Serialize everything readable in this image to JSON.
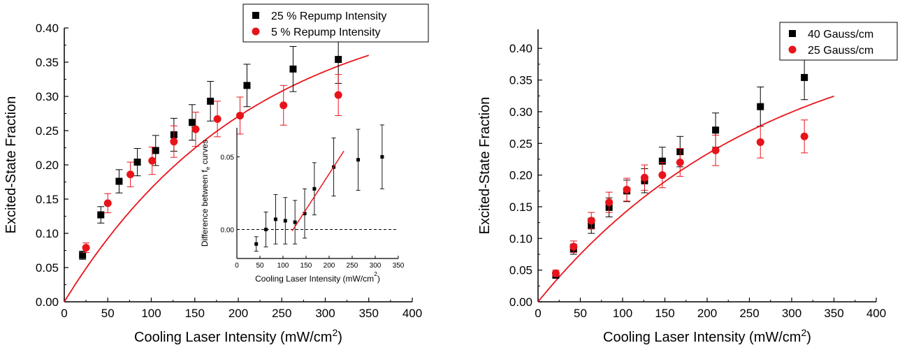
{
  "chart_data": [
    {
      "type": "scatter",
      "xlabel": "Cooling Laser Intensity (mW/cm²)",
      "ylabel": "Excited-State Fraction",
      "xlim": [
        0,
        400
      ],
      "ylim": [
        0,
        0.4
      ],
      "xticks": [
        "0",
        "50",
        "100",
        "150",
        "200",
        "250",
        "300",
        "350",
        "400"
      ],
      "yticks": [
        "0.00",
        "0.05",
        "0.10",
        "0.15",
        "0.20",
        "0.25",
        "0.30",
        "0.35",
        "0.40"
      ],
      "legend_position": "top-right",
      "series": [
        {
          "name": "25 % Repump Intensity",
          "marker": "square",
          "color": "#000000",
          "x": [
            21,
            42,
            63,
            84,
            105,
            126,
            147,
            168,
            210,
            263,
            315
          ],
          "y": [
            0.068,
            0.127,
            0.176,
            0.204,
            0.221,
            0.244,
            0.262,
            0.293,
            0.316,
            0.34,
            0.354
          ],
          "err": [
            0.006,
            0.012,
            0.017,
            0.02,
            0.022,
            0.024,
            0.026,
            0.029,
            0.031,
            0.033,
            0.035
          ]
        },
        {
          "name": "5 % Repump Intensity",
          "marker": "circle",
          "color": "#e8141a",
          "x": [
            25,
            50,
            76,
            101,
            126,
            151,
            176,
            202,
            252,
            315
          ],
          "y": [
            0.079,
            0.144,
            0.186,
            0.206,
            0.234,
            0.252,
            0.267,
            0.272,
            0.287,
            0.302
          ],
          "err": [
            0.007,
            0.014,
            0.018,
            0.02,
            0.023,
            0.025,
            0.026,
            0.027,
            0.029,
            0.03
          ]
        },
        {
          "name": "",
          "type": "line",
          "color": "#e8141a",
          "model": {
            "A": 0.45,
            "k": 0.0046
          },
          "x_range": [
            0,
            350
          ]
        }
      ],
      "inset": {
        "type": "scatter",
        "xlabel": "Cooling Laser Intensity (mW/cm²)",
        "ylabel_prefix": "Difference between f",
        "ylabel_sub": "e",
        "ylabel_suffix": " curves",
        "xlim": [
          0,
          350
        ],
        "ylim": [
          -0.02,
          0.07
        ],
        "xticks": [
          "0",
          "50",
          "100",
          "150",
          "200",
          "250",
          "300",
          "350"
        ],
        "yticks": [
          "0.00",
          "0.05"
        ],
        "dashed_zero_line": true,
        "series": [
          {
            "name": "",
            "marker": "square",
            "color": "#000000",
            "x": [
              42,
              63,
              84,
              105,
              126,
              147,
              168,
              210,
              263,
              315
            ],
            "y": [
              -0.01,
              0.0,
              0.007,
              0.006,
              0.005,
              0.011,
              0.028,
              0.043,
              0.048,
              0.05
            ],
            "err": [
              0.005,
              0.012,
              0.017,
              0.016,
              0.015,
              0.017,
              0.018,
              0.02,
              0.021,
              0.022
            ]
          },
          {
            "name": "",
            "type": "line",
            "color": "#e8141a",
            "x": [
              120,
              232
            ],
            "y": [
              -0.001,
              0.054
            ]
          }
        ]
      }
    },
    {
      "type": "scatter",
      "xlabel": "Cooling Laser Intensity (mW/cm²)",
      "ylabel": "Excited-State Fraction",
      "xlim": [
        0,
        400
      ],
      "ylim": [
        0,
        0.43
      ],
      "xticks": [
        "0",
        "50",
        "100",
        "150",
        "200",
        "250",
        "300",
        "350",
        "400"
      ],
      "yticks": [
        "0.00",
        "0.05",
        "0.10",
        "0.15",
        "0.20",
        "0.25",
        "0.30",
        "0.35",
        "0.40"
      ],
      "legend_position": "top-right",
      "series": [
        {
          "name": "40 Gauss/cm",
          "marker": "square",
          "color": "#000000",
          "x": [
            21,
            42,
            63,
            84,
            105,
            126,
            147,
            168,
            210,
            263,
            315
          ],
          "y": [
            0.042,
            0.083,
            0.12,
            0.149,
            0.175,
            0.191,
            0.222,
            0.237,
            0.271,
            0.308,
            0.354
          ],
          "err": [
            0.004,
            0.008,
            0.012,
            0.015,
            0.017,
            0.019,
            0.022,
            0.024,
            0.027,
            0.031,
            0.035
          ]
        },
        {
          "name": "25 Gauss/cm",
          "marker": "circle",
          "color": "#e8141a",
          "x": [
            21,
            42,
            63,
            84,
            105,
            126,
            147,
            168,
            210,
            263,
            315
          ],
          "y": [
            0.045,
            0.087,
            0.128,
            0.157,
            0.177,
            0.196,
            0.2,
            0.22,
            0.239,
            0.252,
            0.261
          ],
          "err": [
            0.005,
            0.009,
            0.013,
            0.016,
            0.018,
            0.02,
            0.02,
            0.022,
            0.024,
            0.025,
            0.026
          ]
        },
        {
          "name": "",
          "type": "line",
          "color": "#e8141a",
          "model": {
            "A": 0.45,
            "k": 0.00365
          },
          "x_range": [
            0,
            350
          ]
        }
      ]
    }
  ]
}
